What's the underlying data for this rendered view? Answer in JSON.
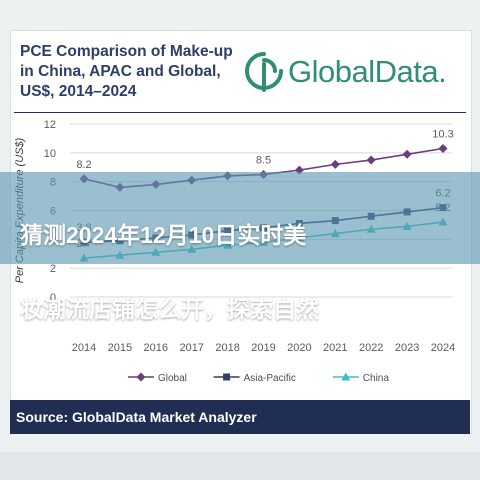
{
  "header": {
    "title_lines": [
      "PCE Comparison of Make-up",
      "in China, APAC and Global,",
      "US$, 2014–2024"
    ],
    "brand": "GlobalData."
  },
  "overlay": {
    "headline_lines": [
      "猜测2024年12月10日实时美",
      "妆潮流店铺怎么开，探索自然"
    ]
  },
  "footer": {
    "source": "Source: GlobalData Market Analyzer"
  },
  "colors": {
    "title": "#2d3e66",
    "brand": "#2f8f74",
    "global": "#6a3d7c",
    "asia_pacific": "#2f3f66",
    "china": "#3cbfc2",
    "footer_bg": "#1f2e52"
  },
  "chart_data": {
    "type": "line",
    "title": "PCE Comparison of Make-up in China, APAC and Global, US$, 2014–2024",
    "xlabel": "",
    "ylabel": "Per Capita Expenditure (US$)",
    "categories": [
      "2014",
      "2015",
      "2016",
      "2017",
      "2018",
      "2019",
      "2020",
      "2021",
      "2022",
      "2023",
      "2024"
    ],
    "ylim": [
      0,
      12
    ],
    "yticks": [
      0,
      2,
      4,
      6,
      8,
      10,
      12
    ],
    "grid": true,
    "legend": "bottom",
    "series": [
      {
        "name": "Global",
        "marker": "diamond",
        "color": "#6a3d7c",
        "values": [
          8.2,
          7.6,
          7.8,
          8.1,
          8.4,
          8.5,
          8.8,
          9.2,
          9.5,
          9.9,
          10.3
        ]
      },
      {
        "name": "Asia-Pacific",
        "marker": "square",
        "color": "#2f3f66",
        "values": [
          3.8,
          3.9,
          4.1,
          4.3,
          4.6,
          4.8,
          5.1,
          5.3,
          5.6,
          5.9,
          6.2
        ]
      },
      {
        "name": "China",
        "marker": "triangle",
        "color": "#3cbfc2",
        "values": [
          2.7,
          2.9,
          3.1,
          3.3,
          3.6,
          3.8,
          4.1,
          4.4,
          4.7,
          4.9,
          5.2
        ]
      }
    ],
    "data_labels": [
      {
        "series": "Global",
        "index": 0,
        "text": "8.2"
      },
      {
        "series": "Global",
        "index": 5,
        "text": "8.5"
      },
      {
        "series": "Global",
        "index": 10,
        "text": "10.3"
      },
      {
        "series": "Asia-Pacific",
        "index": 0,
        "text": "3.8"
      },
      {
        "series": "Asia-Pacific",
        "index": 10,
        "text": "6.2"
      },
      {
        "series": "China",
        "index": 0,
        "text": "2.7"
      },
      {
        "series": "China",
        "index": 10,
        "text": "5.2"
      }
    ]
  }
}
